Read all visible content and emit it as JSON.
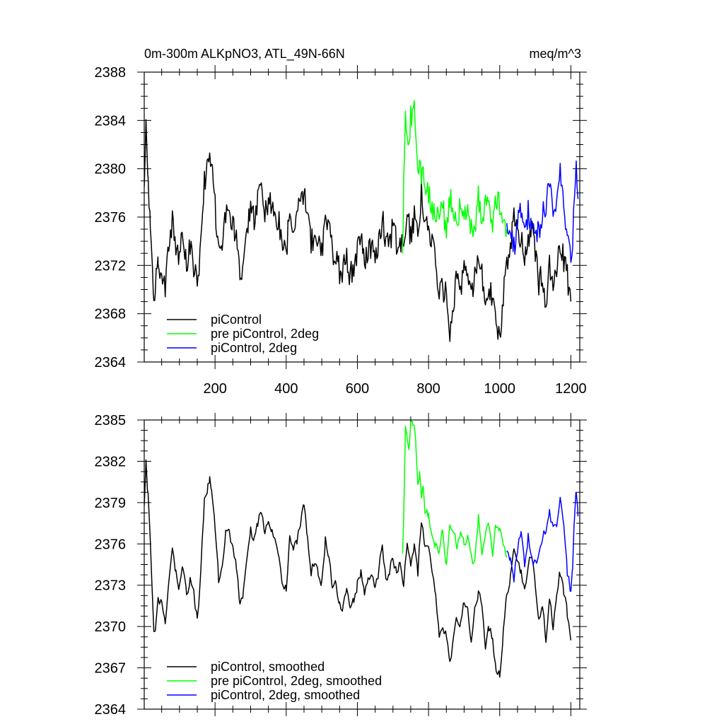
{
  "figure": {
    "title_left": "0m-300m ALKpNO3, ATL_49N-66N",
    "title_right": "meq/m^3"
  },
  "colors": {
    "piControl": "#000000",
    "pre": "#00ff00",
    "twodeg": "#0000ff"
  },
  "chart_data": [
    {
      "type": "line",
      "title": "0m-300m ALKpNO3, ATL_49N-66N",
      "units": "meq/m^3",
      "xlim": [
        1,
        1225
      ],
      "ylim": [
        2364,
        2388
      ],
      "x_ticks": [
        200,
        400,
        600,
        800,
        1000,
        1200
      ],
      "x_tick_labels": [
        "200",
        "400",
        "600",
        "800",
        "1000",
        "1200"
      ],
      "y_ticks": [
        2364,
        2368,
        2372,
        2376,
        2380,
        2384,
        2388
      ],
      "y_tick_labels": [
        "2364",
        "2368",
        "2372",
        "2376",
        "2380",
        "2384",
        "2388"
      ],
      "legend": [
        "piControl",
        "pre piControl, 2deg",
        "piControl, 2deg"
      ],
      "legend_position": "bottom-left",
      "series": [
        {
          "name": "piControl",
          "color": "#000000",
          "style": "noisy",
          "x": [
            1,
            6,
            12,
            18,
            24,
            28,
            32,
            40,
            50,
            60,
            70,
            80,
            90,
            100,
            110,
            120,
            130,
            140,
            150,
            160,
            170,
            180,
            185,
            190,
            200,
            210,
            220,
            230,
            240,
            250,
            260,
            270,
            280,
            290,
            300,
            310,
            320,
            330,
            340,
            350,
            360,
            370,
            380,
            390,
            400,
            410,
            420,
            430,
            440,
            450,
            460,
            470,
            480,
            490,
            500,
            510,
            520,
            530,
            540,
            550,
            560,
            570,
            580,
            590,
            600,
            610,
            620,
            630,
            640,
            650,
            660,
            670,
            680,
            690,
            700,
            710,
            720,
            730,
            740,
            750,
            760,
            770,
            780,
            790,
            800,
            810,
            820,
            830,
            840,
            850,
            860,
            870,
            880,
            890,
            900,
            910,
            920,
            930,
            940,
            950,
            960,
            970,
            980,
            990,
            1000,
            1010,
            1020,
            1030,
            1040,
            1050,
            1060,
            1070,
            1080,
            1090,
            1100,
            1110,
            1120,
            1130,
            1140,
            1150,
            1160,
            1170,
            1180,
            1190,
            1200
          ],
          "y": [
            2378.5,
            2383.0,
            2379.0,
            2376.0,
            2372.0,
            2368.5,
            2370.0,
            2372.5,
            2371.5,
            2370.0,
            2374.0,
            2375.5,
            2373.0,
            2373.0,
            2374.5,
            2372.0,
            2373.5,
            2372.0,
            2370.0,
            2374.0,
            2379.0,
            2380.5,
            2381.5,
            2380.0,
            2377.0,
            2373.0,
            2374.0,
            2376.5,
            2377.0,
            2375.0,
            2374.5,
            2371.0,
            2372.0,
            2375.0,
            2377.0,
            2376.0,
            2377.5,
            2378.0,
            2376.5,
            2377.5,
            2377.0,
            2376.0,
            2375.5,
            2373.0,
            2373.0,
            2376.5,
            2375.5,
            2376.0,
            2377.5,
            2378.0,
            2376.0,
            2374.0,
            2374.5,
            2374.0,
            2373.0,
            2376.5,
            2375.0,
            2373.0,
            2373.0,
            2371.5,
            2371.5,
            2373.0,
            2371.0,
            2372.0,
            2373.0,
            2374.0,
            2372.5,
            2373.5,
            2373.5,
            2373.0,
            2374.0,
            2376.0,
            2373.5,
            2374.0,
            2375.0,
            2374.0,
            2374.5,
            2373.0,
            2376.0,
            2374.5,
            2376.0,
            2374.0,
            2378.0,
            2376.0,
            2375.5,
            2374.0,
            2372.5,
            2369.5,
            2370.0,
            2369.5,
            2366.5,
            2369.0,
            2371.0,
            2370.0,
            2372.0,
            2371.0,
            2369.0,
            2371.5,
            2372.5,
            2371.5,
            2368.5,
            2370.0,
            2369.0,
            2367.0,
            2366.0,
            2369.5,
            2372.5,
            2373.5,
            2376.0,
            2375.0,
            2374.0,
            2372.5,
            2374.5,
            2375.0,
            2373.0,
            2370.5,
            2371.5,
            2369.0,
            2372.0,
            2370.0,
            2372.0,
            2374.0,
            2372.5,
            2371.0,
            2369.0
          ]
        },
        {
          "name": "pre piControl, 2deg",
          "color": "#00ff00",
          "style": "noisy",
          "x": [
            727,
            730,
            735,
            740,
            745,
            750,
            755,
            760,
            765,
            770,
            775,
            780,
            785,
            790,
            795,
            800,
            810,
            820,
            830,
            840,
            850,
            860,
            870,
            880,
            890,
            900,
            910,
            920,
            930,
            940,
            950,
            960,
            970,
            980,
            990,
            1000,
            1010,
            1020
          ],
          "y": [
            2373.0,
            2378.0,
            2384.5,
            2383.5,
            2382.5,
            2384.5,
            2384.0,
            2385.0,
            2383.0,
            2379.0,
            2381.0,
            2379.5,
            2380.0,
            2377.5,
            2378.5,
            2378.0,
            2376.5,
            2376.0,
            2375.5,
            2377.0,
            2374.0,
            2377.5,
            2377.0,
            2375.5,
            2377.0,
            2376.0,
            2376.5,
            2375.0,
            2374.5,
            2378.0,
            2375.5,
            2377.0,
            2377.5,
            2375.0,
            2377.5,
            2377.0,
            2376.0,
            2375.0
          ]
        },
        {
          "name": "piControl, 2deg",
          "color": "#0000ff",
          "style": "noisy",
          "x": [
            1020,
            1030,
            1040,
            1050,
            1060,
            1070,
            1080,
            1090,
            1100,
            1110,
            1120,
            1130,
            1140,
            1150,
            1160,
            1170,
            1180,
            1190,
            1200,
            1205,
            1210,
            1215,
            1220
          ],
          "y": [
            2375.5,
            2375.0,
            2373.5,
            2375.5,
            2377.0,
            2374.5,
            2376.5,
            2375.0,
            2374.5,
            2375.0,
            2376.5,
            2377.0,
            2378.5,
            2377.0,
            2377.5,
            2379.5,
            2377.5,
            2374.0,
            2372.5,
            2374.5,
            2378.0,
            2380.0,
            2377.5
          ]
        }
      ]
    },
    {
      "type": "line",
      "xlim": [
        1,
        1225
      ],
      "ylim": [
        2364,
        2385
      ],
      "x_ticks": [
        200,
        400,
        600,
        800,
        1000,
        1200
      ],
      "x_tick_labels": [],
      "y_ticks": [
        2364,
        2367,
        2370,
        2373,
        2376,
        2379,
        2382,
        2385
      ],
      "y_tick_labels": [
        "2364",
        "2367",
        "2370",
        "2373",
        "2376",
        "2379",
        "2382",
        "2385"
      ],
      "legend": [
        "piControl, smoothed",
        "pre piControl, 2deg, smoothed",
        "piControl, 2deg, smoothed"
      ],
      "legend_position": "bottom-left",
      "series": [
        {
          "name": "piControl, smoothed",
          "color": "#000000",
          "style": "smooth",
          "x": [
            1,
            6,
            12,
            18,
            24,
            28,
            32,
            40,
            50,
            60,
            70,
            80,
            90,
            100,
            110,
            120,
            130,
            140,
            150,
            160,
            170,
            180,
            185,
            190,
            200,
            210,
            220,
            230,
            240,
            250,
            260,
            270,
            280,
            290,
            300,
            310,
            320,
            330,
            340,
            350,
            360,
            370,
            380,
            390,
            400,
            410,
            420,
            430,
            440,
            450,
            460,
            470,
            480,
            490,
            500,
            510,
            520,
            530,
            540,
            550,
            560,
            570,
            580,
            590,
            600,
            610,
            620,
            630,
            640,
            650,
            660,
            670,
            680,
            690,
            700,
            710,
            720,
            730,
            740,
            750,
            760,
            770,
            780,
            790,
            800,
            810,
            820,
            830,
            840,
            850,
            860,
            870,
            880,
            890,
            900,
            910,
            920,
            930,
            940,
            950,
            960,
            970,
            980,
            990,
            1000,
            1010,
            1020,
            1030,
            1040,
            1050,
            1060,
            1070,
            1080,
            1090,
            1100,
            1110,
            1120,
            1130,
            1140,
            1150,
            1160,
            1170,
            1180,
            1190,
            1200
          ],
          "y": [
            2378.8,
            2381.8,
            2379.5,
            2376.3,
            2372.0,
            2369.3,
            2370.0,
            2372.0,
            2371.8,
            2370.3,
            2373.5,
            2375.5,
            2374.0,
            2372.8,
            2374.5,
            2372.2,
            2373.5,
            2372.5,
            2370.3,
            2374.0,
            2379.0,
            2380.2,
            2380.8,
            2380.0,
            2377.3,
            2373.5,
            2374.0,
            2376.8,
            2377.0,
            2375.5,
            2374.5,
            2371.5,
            2372.5,
            2375.0,
            2377.0,
            2376.3,
            2377.5,
            2378.5,
            2376.5,
            2377.8,
            2377.0,
            2376.5,
            2375.3,
            2373.0,
            2372.8,
            2376.5,
            2375.5,
            2376.3,
            2377.5,
            2379.0,
            2376.5,
            2374.0,
            2374.8,
            2374.0,
            2373.0,
            2376.3,
            2375.0,
            2373.0,
            2373.0,
            2371.5,
            2371.3,
            2373.0,
            2371.2,
            2372.0,
            2373.0,
            2374.0,
            2372.5,
            2373.5,
            2373.5,
            2373.0,
            2374.0,
            2376.0,
            2373.5,
            2374.0,
            2375.0,
            2373.8,
            2374.5,
            2373.0,
            2376.0,
            2374.5,
            2375.8,
            2374.0,
            2377.8,
            2376.0,
            2375.5,
            2374.0,
            2372.5,
            2369.5,
            2369.8,
            2369.5,
            2367.2,
            2369.0,
            2370.8,
            2370.0,
            2372.0,
            2371.0,
            2369.0,
            2371.5,
            2372.5,
            2371.5,
            2368.5,
            2370.0,
            2369.0,
            2367.0,
            2366.5,
            2369.5,
            2372.3,
            2373.5,
            2375.8,
            2375.0,
            2374.0,
            2372.5,
            2374.5,
            2375.0,
            2373.0,
            2370.5,
            2371.5,
            2369.0,
            2372.0,
            2370.0,
            2372.0,
            2374.0,
            2372.5,
            2371.0,
            2369.0
          ]
        },
        {
          "name": "pre piControl, 2deg, smoothed",
          "color": "#00ff00",
          "style": "smooth",
          "x": [
            727,
            730,
            735,
            740,
            745,
            750,
            755,
            760,
            765,
            770,
            775,
            780,
            785,
            790,
            795,
            800,
            810,
            820,
            830,
            840,
            850,
            860,
            870,
            880,
            890,
            900,
            910,
            920,
            930,
            940,
            950,
            960,
            970,
            980,
            990,
            1000,
            1010,
            1020
          ],
          "y": [
            2375.3,
            2378.0,
            2384.2,
            2383.5,
            2382.8,
            2384.5,
            2384.8,
            2384.5,
            2383.0,
            2380.0,
            2381.0,
            2379.5,
            2380.0,
            2378.0,
            2378.5,
            2378.0,
            2376.5,
            2375.8,
            2375.5,
            2377.0,
            2374.3,
            2377.5,
            2377.0,
            2375.5,
            2377.0,
            2376.0,
            2376.5,
            2375.0,
            2374.5,
            2378.0,
            2375.5,
            2377.0,
            2377.5,
            2375.0,
            2377.5,
            2377.0,
            2376.0,
            2375.0
          ]
        },
        {
          "name": "piControl, 2deg, smoothed",
          "color": "#0000ff",
          "style": "smooth",
          "x": [
            1020,
            1030,
            1040,
            1050,
            1060,
            1070,
            1080,
            1090,
            1100,
            1110,
            1120,
            1130,
            1140,
            1150,
            1160,
            1170,
            1180,
            1190,
            1200,
            1205,
            1210,
            1215,
            1220
          ],
          "y": [
            2375.5,
            2375.0,
            2373.5,
            2375.5,
            2377.0,
            2374.5,
            2376.5,
            2375.0,
            2374.5,
            2375.0,
            2376.5,
            2377.0,
            2378.5,
            2377.0,
            2377.5,
            2379.3,
            2377.5,
            2374.0,
            2372.5,
            2374.5,
            2378.0,
            2379.8,
            2378.0
          ]
        }
      ]
    }
  ]
}
